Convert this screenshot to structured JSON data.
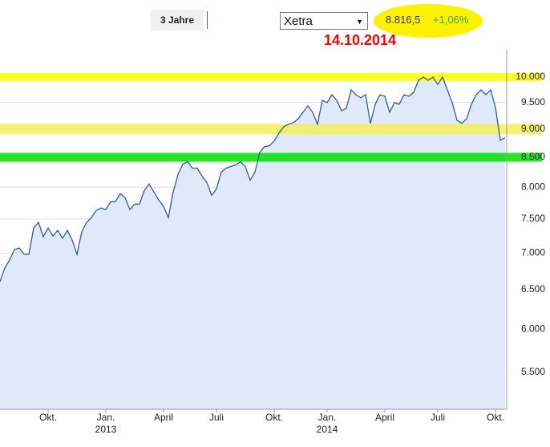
{
  "toolbar": {
    "range_button": "3 Jahre",
    "exchange": "Xetra",
    "last_price": "8.816,5",
    "change": "+1,06%",
    "date_annotation": "14.10.2014"
  },
  "chart_data": {
    "type": "area",
    "log_scale": true,
    "grid": true,
    "color": "#2c5ba8",
    "fill_color": "#dbe7f8",
    "ylim": [
      5100,
      10570
    ],
    "yticks": [
      {
        "value": 5500,
        "label": "5.500"
      },
      {
        "value": 6000,
        "label": "6.000"
      },
      {
        "value": 6500,
        "label": "6.500"
      },
      {
        "value": 7000,
        "label": "7.000"
      },
      {
        "value": 7500,
        "label": "7.500"
      },
      {
        "value": 8000,
        "label": "8.000"
      },
      {
        "value": 8500,
        "label": "8.500"
      },
      {
        "value": 9000,
        "label": "9.000"
      },
      {
        "value": 9500,
        "label": "9.500"
      },
      {
        "value": 10000,
        "label": "10.000"
      }
    ],
    "highlight_lines": [
      {
        "value": 10000,
        "color": "#ffff00"
      },
      {
        "value": 9000,
        "color": "#f4f05a"
      },
      {
        "value": 8500,
        "color": "#00e000"
      }
    ],
    "categories": [
      null,
      null,
      null,
      null,
      null,
      null,
      null,
      null,
      null,
      null,
      "Okt.",
      null,
      null,
      null,
      null,
      null,
      null,
      null,
      null,
      null,
      null,
      null,
      "Jan.\n2013",
      null,
      null,
      null,
      null,
      null,
      null,
      null,
      null,
      null,
      null,
      null,
      "April",
      null,
      null,
      null,
      null,
      null,
      null,
      null,
      null,
      null,
      null,
      "Juli",
      null,
      null,
      null,
      null,
      null,
      null,
      null,
      null,
      null,
      null,
      null,
      "Okt.",
      null,
      null,
      null,
      null,
      null,
      null,
      null,
      null,
      null,
      null,
      "Jan.\n2014",
      null,
      null,
      null,
      null,
      null,
      null,
      null,
      null,
      null,
      null,
      null,
      "April",
      null,
      null,
      null,
      null,
      null,
      null,
      null,
      null,
      null,
      null,
      "Juli",
      null,
      null,
      null,
      null,
      null,
      null,
      null,
      null,
      null,
      null,
      null,
      "Okt.",
      null,
      null
    ],
    "values": [
      6606,
      6792,
      6903,
      7050,
      7073,
      6982,
      6982,
      7365,
      7449,
      7235,
      7365,
      7247,
      7329,
      7212,
      7329,
      7188,
      6982,
      7306,
      7449,
      7521,
      7632,
      7669,
      7644,
      7769,
      7769,
      7895,
      7832,
      7644,
      7731,
      7731,
      7946,
      8050,
      7921,
      7794,
      7694,
      7521,
      7921,
      8208,
      8382,
      8423,
      8315,
      8315,
      8181,
      8076,
      7870,
      7972,
      8248,
      8315,
      8342,
      8369,
      8423,
      8342,
      8115,
      8248,
      8588,
      8686,
      8700,
      8785,
      8928,
      9045,
      9089,
      9118,
      9192,
      9312,
      9434,
      9312,
      9089,
      9541,
      9495,
      9650,
      9541,
      9342,
      9388,
      9744,
      9650,
      9588,
      9650,
      9103,
      9464,
      9650,
      9619,
      9312,
      9495,
      9464,
      9650,
      9619,
      9697,
      9935,
      10000,
      9935,
      10000,
      9855,
      10000,
      9744,
      9495,
      9163,
      9103,
      9192,
      9464,
      9650,
      9744,
      9650,
      9744,
      9403,
      8799,
      8842
    ]
  }
}
